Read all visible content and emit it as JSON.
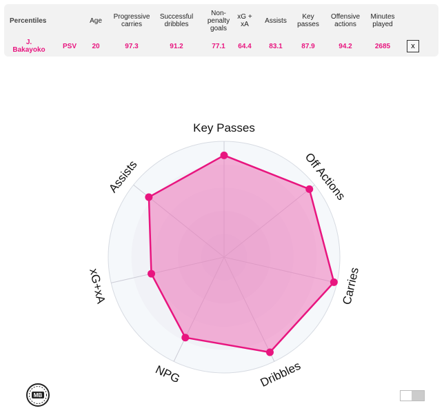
{
  "table": {
    "heading": "Percentiles",
    "columns": [
      "Age",
      "Progressive carries",
      "Successful dribbles",
      "Non-penalty goals",
      "xG + xA",
      "Assists",
      "Key passes",
      "Offensive actions",
      "Minutes played"
    ],
    "player": "J. Bakayoko",
    "team": "PSV",
    "values": [
      "20",
      "97.3",
      "91.2",
      "77.1",
      "64.4",
      "83.1",
      "87.9",
      "94.2",
      "2685"
    ],
    "close_label": "x"
  },
  "chart_data": {
    "type": "radar",
    "categories": [
      "Key Passes",
      "Off Actions",
      "Carries",
      "Dribbles",
      "NPG",
      "xG+xA",
      "Assists"
    ],
    "series": [
      {
        "values": [
          87.9,
          94.2,
          97.3,
          91.2,
          77.1,
          64.4,
          83.1
        ]
      }
    ],
    "range": [
      0,
      100
    ],
    "colors": {
      "line": "#e8157f",
      "fill": "#f06ab4",
      "ring_outer": "#f5f8fb",
      "ring_inner": "#e6e8f0"
    }
  },
  "logo_text": "MB"
}
